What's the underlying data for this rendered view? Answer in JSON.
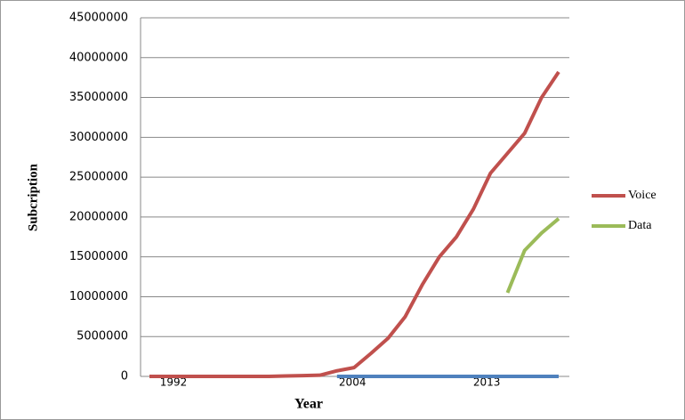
{
  "chart_data": {
    "type": "line",
    "x_label": "Year",
    "y_label": "Subcription",
    "categories": [
      "1992",
      null,
      null,
      null,
      null,
      null,
      null,
      null,
      null,
      null,
      null,
      null,
      "2004",
      null,
      null,
      null,
      null,
      null,
      null,
      null,
      null,
      "2013",
      null,
      null,
      null
    ],
    "series": [
      {
        "name": "Voice",
        "color": "#c0504d",
        "values": [
          0,
          0,
          0,
          0,
          0,
          0,
          0,
          0,
          50000,
          100000,
          150000,
          700000,
          1100000,
          2900000,
          4800000,
          7500000,
          11500000,
          15000000,
          17500000,
          21000000,
          25500000,
          28000000,
          30500000,
          35000000,
          38200000
        ]
      },
      {
        "name": "Data",
        "color": "#9bbb59",
        "values": [
          null,
          null,
          null,
          null,
          null,
          null,
          null,
          null,
          null,
          null,
          null,
          null,
          null,
          null,
          null,
          null,
          null,
          null,
          null,
          null,
          null,
          10500000,
          15800000,
          18000000,
          19800000
        ]
      },
      {
        "color": "#4f81bd",
        "values": [
          null,
          null,
          null,
          null,
          null,
          null,
          null,
          null,
          null,
          null,
          null,
          0,
          0,
          0,
          0,
          0,
          0,
          0,
          0,
          0,
          0,
          0,
          0,
          0,
          0
        ]
      }
    ],
    "ylim": [
      0,
      45000000
    ],
    "yticks": [
      0,
      5000000,
      10000000,
      15000000,
      20000000,
      25000000,
      30000000,
      35000000,
      40000000,
      45000000
    ],
    "grid": true,
    "legend": "right"
  }
}
